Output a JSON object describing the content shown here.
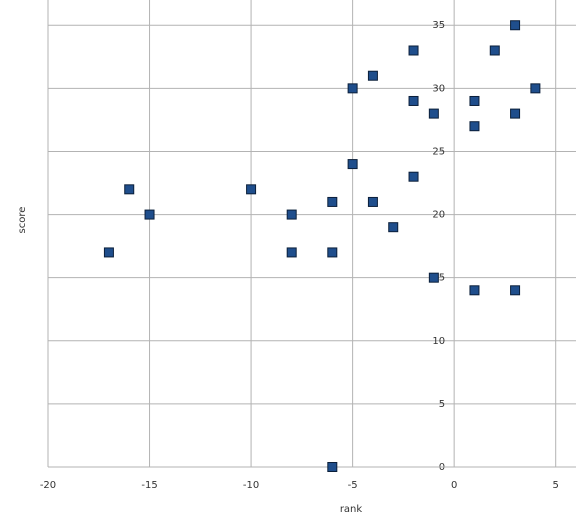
{
  "chart_data": {
    "type": "scatter",
    "x_label": "rank",
    "y_label": "score",
    "x": [
      3,
      2,
      -2,
      -4,
      -5,
      4,
      -2,
      1,
      -1,
      3,
      1,
      -5,
      -2,
      -16,
      -10,
      -6,
      -4,
      -15,
      -8,
      -3,
      -17,
      -8,
      -6,
      -1,
      1,
      3,
      -6
    ],
    "y": [
      35,
      33,
      33,
      31,
      30,
      30,
      29,
      29,
      28,
      28,
      27,
      24,
      23,
      22,
      22,
      21,
      21,
      20,
      20,
      19,
      17,
      17,
      17,
      15,
      14,
      14,
      0
    ],
    "color": "#1f4e8c",
    "xlim": [
      -20,
      6
    ],
    "xticks": [
      -20,
      -15,
      -10,
      -5,
      0,
      5
    ],
    "ylim": [
      0,
      37
    ],
    "yticks": [
      0,
      5,
      10,
      15,
      20,
      25,
      30,
      35
    ],
    "grid": true
  }
}
